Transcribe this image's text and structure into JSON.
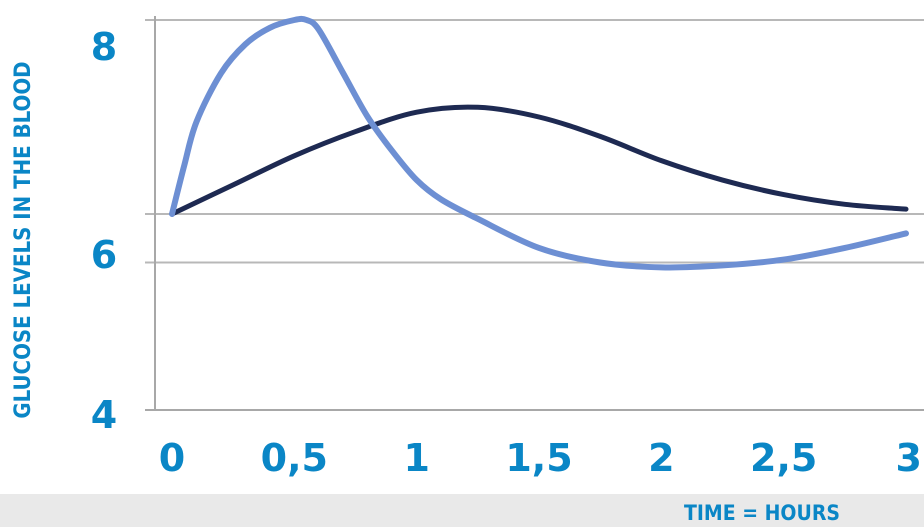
{
  "chart_data": {
    "type": "line",
    "xlabel": "TIME = HOURS",
    "ylabel": "GLUCOSE LEVELS IN THE BLOOD",
    "xlim": [
      0,
      3
    ],
    "ylim": [
      4,
      8
    ],
    "x_ticks": [
      "0",
      "0,5",
      "1",
      "1,5",
      "2",
      "2,5",
      "3"
    ],
    "x_tick_values": [
      0,
      0.5,
      1,
      1.5,
      2,
      2.5,
      3
    ],
    "y_ticks": [
      "4",
      "6",
      "8"
    ],
    "y_tick_values": [
      4,
      6,
      8
    ],
    "gridlines_y": [
      5.5,
      6,
      8
    ],
    "grid": true,
    "legend": "none",
    "series": [
      {
        "color": "#6d8fd3",
        "x": [
          0,
          0.05,
          0.1,
          0.2,
          0.3,
          0.4,
          0.5,
          0.55,
          0.6,
          0.7,
          0.8,
          0.9,
          1.0,
          1.1,
          1.25,
          1.5,
          1.75,
          2.0,
          2.25,
          2.5,
          2.75,
          3.0
        ],
        "y": [
          6.0,
          6.5,
          6.95,
          7.45,
          7.75,
          7.92,
          8.0,
          8.0,
          7.9,
          7.45,
          7.0,
          6.65,
          6.35,
          6.15,
          5.95,
          5.65,
          5.5,
          5.45,
          5.47,
          5.53,
          5.65,
          5.8
        ]
      },
      {
        "color": "#1e2a52",
        "x": [
          0,
          0.25,
          0.5,
          0.75,
          1.0,
          1.25,
          1.5,
          1.75,
          2.0,
          2.25,
          2.5,
          2.75,
          3.0
        ],
        "y": [
          6.0,
          6.3,
          6.6,
          6.85,
          7.05,
          7.1,
          7.0,
          6.8,
          6.55,
          6.35,
          6.2,
          6.1,
          6.05
        ]
      }
    ]
  }
}
